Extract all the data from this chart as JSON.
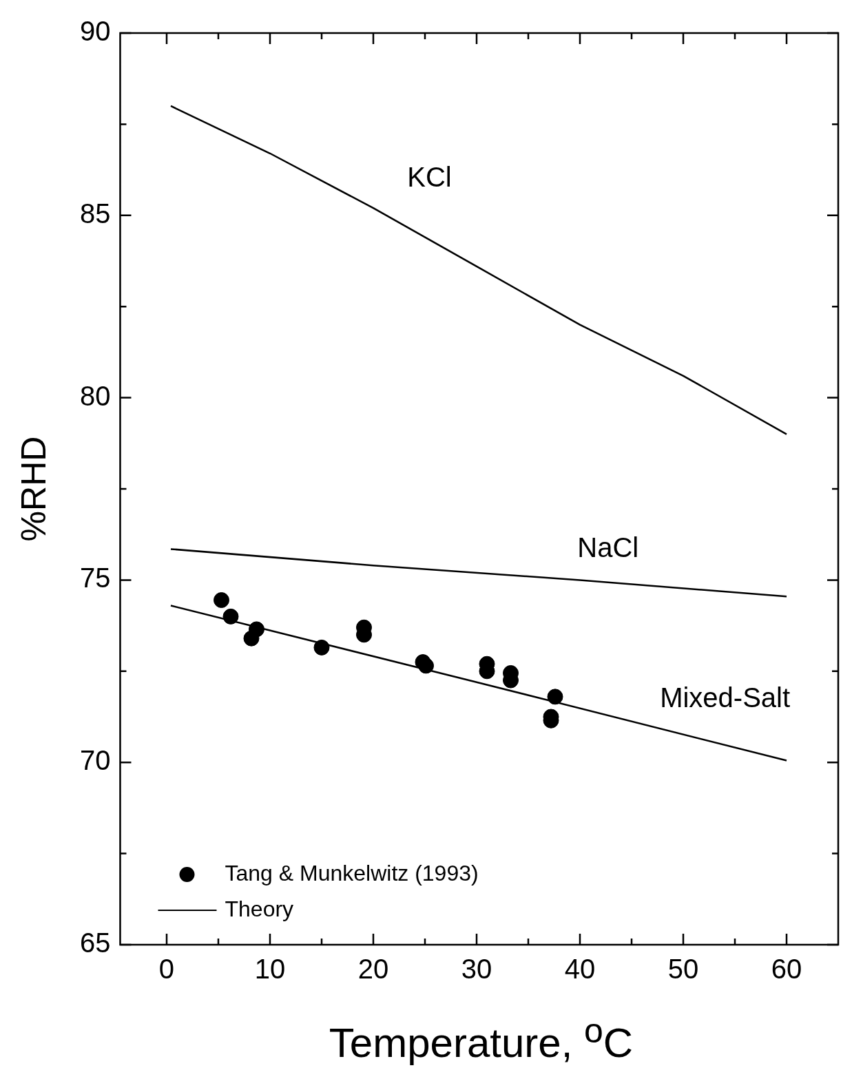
{
  "chart_data": {
    "type": "line",
    "xlabel": "Temperature, $^{o}$C",
    "ylabel": "%RHD",
    "xlim": [
      -4.5,
      65
    ],
    "ylim": [
      65,
      90
    ],
    "xticks": [
      0,
      {
        "value": 5,
        "label": null
      },
      10,
      {
        "value": 15,
        "label": null
      },
      20,
      {
        "value": 25,
        "label": null
      },
      30,
      {
        "value": 35,
        "label": null
      },
      40,
      {
        "value": 45,
        "label": null
      },
      50,
      {
        "value": 55,
        "label": null
      },
      60
    ],
    "yticks": [
      65,
      {
        "value": 67.5,
        "label": null
      },
      70,
      {
        "value": 72.5,
        "label": null
      },
      75,
      {
        "value": 77.5,
        "label": null
      },
      80,
      {
        "value": 82.5,
        "label": null
      },
      85,
      {
        "value": 87.5,
        "label": null
      },
      90
    ],
    "grid": false,
    "legend": "bottom left",
    "series": [
      {
        "name": "Tang & Munkelwitz (1993)",
        "type": "scatter",
        "marker": "circle",
        "color": "#000000",
        "x": [
          5.3,
          6.2,
          8.2,
          8.7,
          15.0,
          19.1,
          19.1,
          24.8,
          25.1,
          31.0,
          31.0,
          33.3,
          33.3,
          37.6,
          37.2,
          37.2
        ],
        "values": [
          74.45,
          74.0,
          73.4,
          73.65,
          73.15,
          73.5,
          73.7,
          72.75,
          72.65,
          72.7,
          72.5,
          72.45,
          72.25,
          71.8,
          71.25,
          71.15
        ]
      },
      {
        "name": "Theory",
        "color": "#000000",
        "x": [
          0.4,
          10,
          20,
          30,
          40,
          50,
          60
        ],
        "values": [
          88.0,
          86.7,
          85.2,
          83.6,
          82.0,
          80.6,
          79.0
        ]
      },
      {
        "color": "#000000",
        "x": [
          0.4,
          20,
          40,
          60
        ],
        "values": [
          75.85,
          75.4,
          75.0,
          74.55
        ]
      },
      {
        "color": "#000000",
        "x": [
          0.4,
          30,
          60
        ],
        "values": [
          74.3,
          72.2,
          70.05
        ]
      }
    ],
    "annotations": [
      "KCl",
      "NaCl",
      "Mixed-Salt"
    ]
  }
}
